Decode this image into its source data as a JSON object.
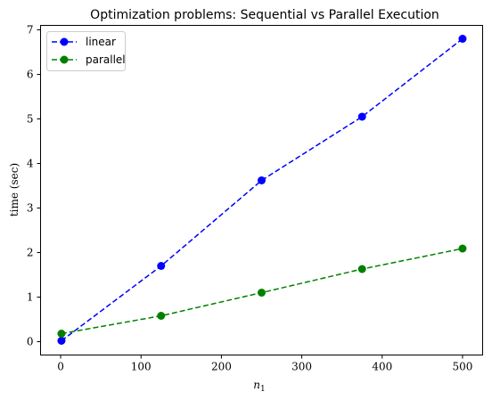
{
  "chart_data": {
    "type": "line",
    "title": "Optimization problems: Sequential vs Parallel Execution",
    "xlabel": "n",
    "xlabel_subscript": "1",
    "ylabel": "time (sec)",
    "xlim": [
      -25,
      525
    ],
    "ylim": [
      -0.3,
      7.1
    ],
    "xticks": [
      0,
      100,
      200,
      300,
      400,
      500
    ],
    "yticks": [
      0,
      1,
      2,
      3,
      4,
      5,
      6,
      7
    ],
    "grid": false,
    "legend_position": "top-left",
    "series": [
      {
        "name": "linear",
        "color": "#0000ff",
        "linestyle": "dashed",
        "marker": "circle",
        "x": [
          1,
          125,
          250,
          375,
          500
        ],
        "y": [
          0.02,
          1.7,
          3.62,
          5.05,
          6.8
        ]
      },
      {
        "name": "parallel",
        "color": "#008000",
        "linestyle": "dashed",
        "marker": "circle",
        "x": [
          1,
          125,
          250,
          375,
          500
        ],
        "y": [
          0.18,
          0.58,
          1.1,
          1.63,
          2.09
        ]
      }
    ]
  }
}
